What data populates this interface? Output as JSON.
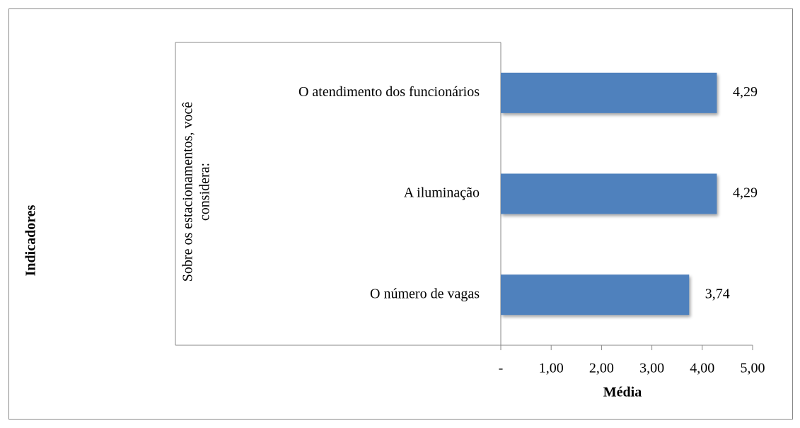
{
  "chart_data": {
    "type": "bar",
    "orientation": "horizontal",
    "y_label": "Indicadores",
    "x_label": "Média",
    "group_label": [
      "Sobre os estacionamentos, você",
      "considera:"
    ],
    "categories": [
      "O atendimento dos funcionários",
      "A iluminação",
      "O número de vagas"
    ],
    "values": [
      4.29,
      4.29,
      3.74
    ],
    "value_labels": [
      "4,29",
      "4,29",
      "3,74"
    ],
    "color": "#4f81bd",
    "xlim": [
      0,
      5
    ],
    "xticks": [
      {
        "value": 0,
        "label": "-"
      },
      {
        "value": 1,
        "label": "1,00"
      },
      {
        "value": 2,
        "label": "2,00"
      },
      {
        "value": 3,
        "label": "3,00"
      },
      {
        "value": 4,
        "label": "4,00"
      },
      {
        "value": 5,
        "label": "5,00"
      }
    ],
    "grid": false
  }
}
